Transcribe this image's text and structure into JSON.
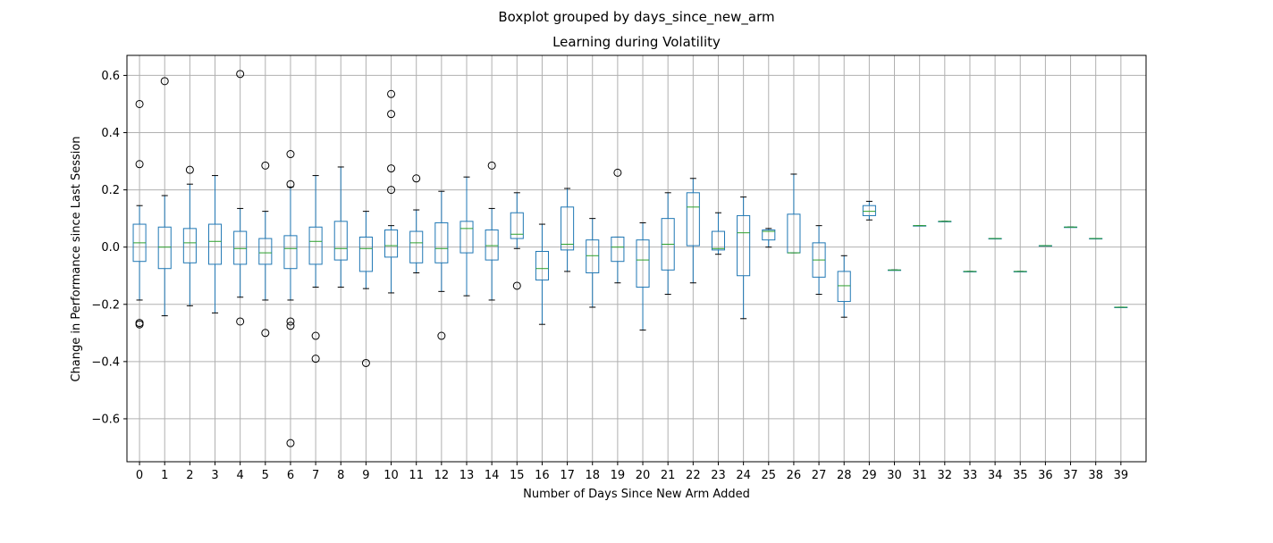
{
  "chart_data": {
    "type": "boxplot",
    "suptitle": "Boxplot grouped by days_since_new_arm",
    "title": "Learning during Volatility",
    "xlabel": "Number of Days Since New Arm Added",
    "ylabel": "Change in Performance since Last Session",
    "ylim": [
      -0.75,
      0.67
    ],
    "yticks": [
      -0.6,
      -0.4,
      -0.2,
      0.0,
      0.2,
      0.4,
      0.6
    ],
    "ytick_labels": [
      "−0.6",
      "−0.4",
      "−0.2",
      "0.0",
      "0.2",
      "0.4",
      "0.6"
    ],
    "grid": true,
    "colors": {
      "box": "#1f77b4",
      "median": "#2ca02c",
      "whisker": "#1f77b4",
      "cap": "#000000",
      "flier": "#000000",
      "grid": "#b0b0b0"
    },
    "categories": [
      "0",
      "1",
      "2",
      "3",
      "4",
      "5",
      "6",
      "7",
      "8",
      "9",
      "10",
      "11",
      "12",
      "13",
      "14",
      "15",
      "16",
      "17",
      "18",
      "19",
      "20",
      "21",
      "22",
      "23",
      "24",
      "25",
      "26",
      "27",
      "28",
      "29",
      "30",
      "31",
      "32",
      "33",
      "34",
      "35",
      "36",
      "37",
      "38",
      "39"
    ],
    "boxes": [
      {
        "q1": -0.05,
        "median": 0.015,
        "q3": 0.08,
        "whislo": -0.185,
        "whishi": 0.145,
        "fliers": [
          0.5,
          0.29,
          -0.265,
          -0.27
        ]
      },
      {
        "q1": -0.075,
        "median": 0.0,
        "q3": 0.07,
        "whislo": -0.24,
        "whishi": 0.18,
        "fliers": [
          0.58
        ]
      },
      {
        "q1": -0.055,
        "median": 0.015,
        "q3": 0.065,
        "whislo": -0.205,
        "whishi": 0.22,
        "fliers": [
          0.27
        ]
      },
      {
        "q1": -0.06,
        "median": 0.02,
        "q3": 0.08,
        "whislo": -0.23,
        "whishi": 0.25,
        "fliers": []
      },
      {
        "q1": -0.06,
        "median": -0.005,
        "q3": 0.055,
        "whislo": -0.175,
        "whishi": 0.135,
        "fliers": [
          0.605,
          -0.26
        ]
      },
      {
        "q1": -0.06,
        "median": -0.02,
        "q3": 0.03,
        "whislo": -0.185,
        "whishi": 0.125,
        "fliers": [
          0.285,
          -0.3
        ]
      },
      {
        "q1": -0.075,
        "median": -0.005,
        "q3": 0.04,
        "whislo": -0.185,
        "whishi": 0.21,
        "fliers": [
          0.325,
          0.22,
          -0.26,
          -0.275,
          -0.685
        ]
      },
      {
        "q1": -0.06,
        "median": 0.02,
        "q3": 0.07,
        "whislo": -0.14,
        "whishi": 0.25,
        "fliers": [
          -0.31,
          -0.39
        ]
      },
      {
        "q1": -0.045,
        "median": -0.005,
        "q3": 0.09,
        "whislo": -0.14,
        "whishi": 0.28,
        "fliers": []
      },
      {
        "q1": -0.085,
        "median": -0.005,
        "q3": 0.035,
        "whislo": -0.145,
        "whishi": 0.125,
        "fliers": [
          -0.405
        ]
      },
      {
        "q1": -0.035,
        "median": 0.005,
        "q3": 0.06,
        "whislo": -0.16,
        "whishi": 0.075,
        "fliers": [
          0.535,
          0.465,
          0.275,
          0.2
        ]
      },
      {
        "q1": -0.055,
        "median": 0.015,
        "q3": 0.055,
        "whislo": -0.09,
        "whishi": 0.13,
        "fliers": [
          0.24
        ]
      },
      {
        "q1": -0.055,
        "median": -0.005,
        "q3": 0.085,
        "whislo": -0.155,
        "whishi": 0.195,
        "fliers": [
          -0.31
        ]
      },
      {
        "q1": -0.02,
        "median": 0.065,
        "q3": 0.09,
        "whislo": -0.17,
        "whishi": 0.245,
        "fliers": []
      },
      {
        "q1": -0.045,
        "median": 0.005,
        "q3": 0.06,
        "whislo": -0.185,
        "whishi": 0.135,
        "fliers": [
          0.285
        ]
      },
      {
        "q1": 0.03,
        "median": 0.045,
        "q3": 0.12,
        "whislo": -0.005,
        "whishi": 0.19,
        "fliers": [
          -0.135
        ]
      },
      {
        "q1": -0.115,
        "median": -0.075,
        "q3": -0.015,
        "whislo": -0.27,
        "whishi": 0.08,
        "fliers": []
      },
      {
        "q1": -0.01,
        "median": 0.01,
        "q3": 0.14,
        "whislo": -0.085,
        "whishi": 0.205,
        "fliers": []
      },
      {
        "q1": -0.09,
        "median": -0.03,
        "q3": 0.025,
        "whislo": -0.21,
        "whishi": 0.1,
        "fliers": []
      },
      {
        "q1": -0.05,
        "median": 0.0,
        "q3": 0.035,
        "whislo": -0.125,
        "whishi": 0.035,
        "fliers": [
          0.26
        ]
      },
      {
        "q1": -0.14,
        "median": -0.045,
        "q3": 0.025,
        "whislo": -0.29,
        "whishi": 0.085,
        "fliers": []
      },
      {
        "q1": -0.08,
        "median": 0.01,
        "q3": 0.1,
        "whislo": -0.165,
        "whishi": 0.19,
        "fliers": []
      },
      {
        "q1": 0.005,
        "median": 0.14,
        "q3": 0.19,
        "whislo": -0.125,
        "whishi": 0.24,
        "fliers": []
      },
      {
        "q1": -0.01,
        "median": -0.005,
        "q3": 0.055,
        "whislo": -0.025,
        "whishi": 0.12,
        "fliers": []
      },
      {
        "q1": -0.1,
        "median": 0.05,
        "q3": 0.11,
        "whislo": -0.25,
        "whishi": 0.175,
        "fliers": []
      },
      {
        "q1": 0.025,
        "median": 0.055,
        "q3": 0.06,
        "whislo": 0.0,
        "whishi": 0.065,
        "fliers": []
      },
      {
        "q1": -0.02,
        "median": -0.02,
        "q3": 0.115,
        "whislo": -0.02,
        "whishi": 0.255,
        "fliers": []
      },
      {
        "q1": -0.105,
        "median": -0.045,
        "q3": 0.015,
        "whislo": -0.165,
        "whishi": 0.075,
        "fliers": []
      },
      {
        "q1": -0.19,
        "median": -0.135,
        "q3": -0.085,
        "whislo": -0.245,
        "whishi": -0.03,
        "fliers": []
      },
      {
        "q1": 0.11,
        "median": 0.125,
        "q3": 0.145,
        "whislo": 0.095,
        "whishi": 0.16,
        "fliers": []
      },
      {
        "q1": -0.08,
        "median": -0.08,
        "q3": -0.08,
        "whislo": -0.08,
        "whishi": -0.08,
        "fliers": []
      },
      {
        "q1": 0.075,
        "median": 0.075,
        "q3": 0.075,
        "whislo": 0.075,
        "whishi": 0.075,
        "fliers": []
      },
      {
        "q1": 0.09,
        "median": 0.09,
        "q3": 0.09,
        "whislo": 0.09,
        "whishi": 0.09,
        "fliers": []
      },
      {
        "q1": -0.085,
        "median": -0.085,
        "q3": -0.085,
        "whislo": -0.085,
        "whishi": -0.085,
        "fliers": []
      },
      {
        "q1": 0.03,
        "median": 0.03,
        "q3": 0.03,
        "whislo": 0.03,
        "whishi": 0.03,
        "fliers": []
      },
      {
        "q1": -0.085,
        "median": -0.085,
        "q3": -0.085,
        "whislo": -0.085,
        "whishi": -0.085,
        "fliers": []
      },
      {
        "q1": 0.005,
        "median": 0.005,
        "q3": 0.005,
        "whislo": 0.005,
        "whishi": 0.005,
        "fliers": []
      },
      {
        "q1": 0.07,
        "median": 0.07,
        "q3": 0.07,
        "whislo": 0.07,
        "whishi": 0.07,
        "fliers": []
      },
      {
        "q1": 0.03,
        "median": 0.03,
        "q3": 0.03,
        "whislo": 0.03,
        "whishi": 0.03,
        "fliers": []
      },
      {
        "q1": -0.21,
        "median": -0.21,
        "q3": -0.21,
        "whislo": -0.21,
        "whishi": -0.21,
        "fliers": []
      }
    ]
  }
}
